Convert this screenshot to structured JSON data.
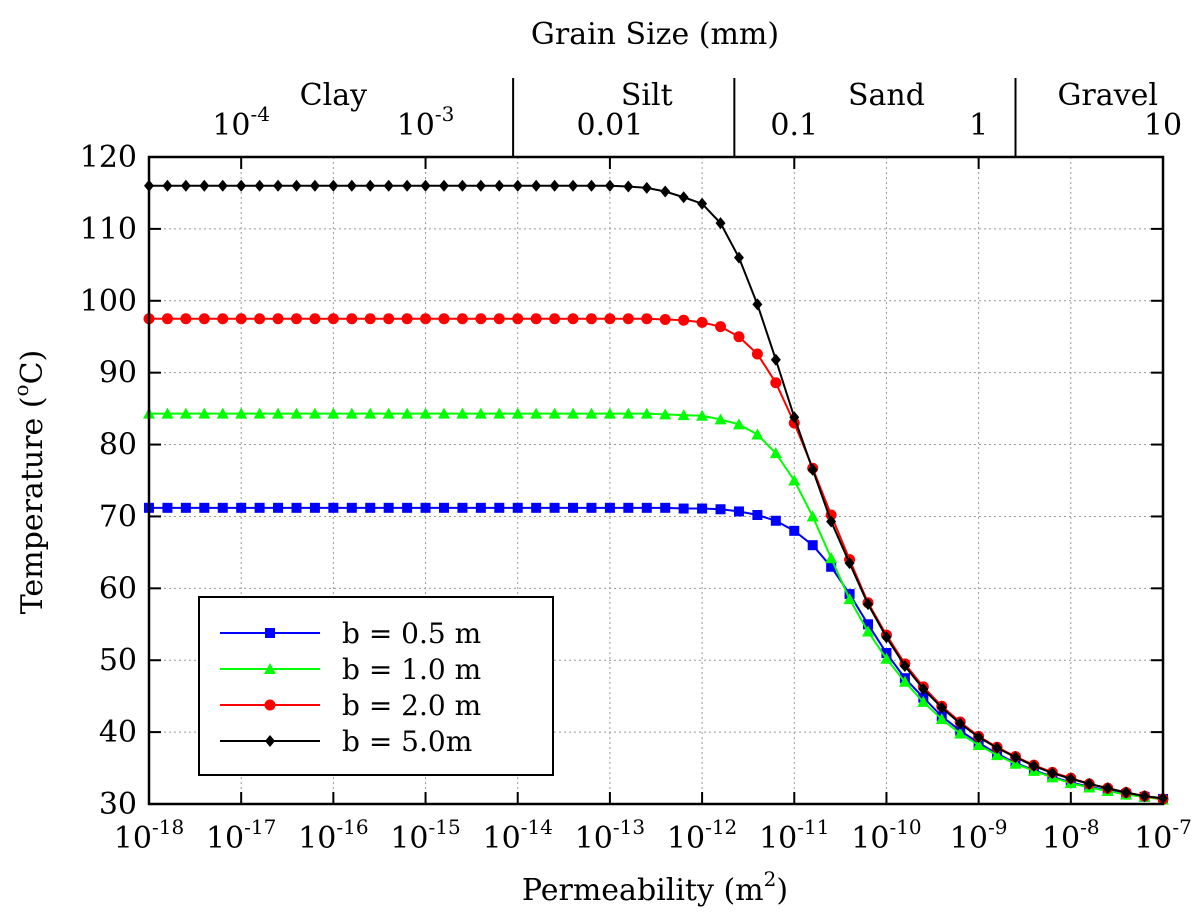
{
  "chart_data": {
    "type": "line",
    "top_title": "Grain Size (mm)",
    "xlabel": "Permeability (m^2)",
    "ylabel": "Temperature (°C)",
    "xscale": "log",
    "xlim": [
      1e-18,
      1e-07
    ],
    "ylim": [
      30,
      120
    ],
    "grid": true,
    "legend_position": "bottom-left",
    "x_tick_labels": [
      {
        "base": "10",
        "exp": "-18"
      },
      {
        "base": "10",
        "exp": "-17"
      },
      {
        "base": "10",
        "exp": "-16"
      },
      {
        "base": "10",
        "exp": "-15"
      },
      {
        "base": "10",
        "exp": "-14"
      },
      {
        "base": "10",
        "exp": "-13"
      },
      {
        "base": "10",
        "exp": "-12"
      },
      {
        "base": "10",
        "exp": "-11"
      },
      {
        "base": "10",
        "exp": "-10"
      },
      {
        "base": "10",
        "exp": "-9"
      },
      {
        "base": "10",
        "exp": "-8"
      },
      {
        "base": "10",
        "exp": "-7"
      }
    ],
    "y_ticks": [
      "30",
      "40",
      "50",
      "60",
      "70",
      "80",
      "90",
      "100",
      "110",
      "120"
    ],
    "grain_size_ticks": [
      {
        "base": "10",
        "exp": "-4",
        "permeability_log10": -17
      },
      {
        "base": "10",
        "exp": "-3",
        "permeability_log10": -15
      },
      {
        "base": "0.01",
        "exp": "",
        "permeability_log10": -13
      },
      {
        "base": "0.1",
        "exp": "",
        "permeability_log10": -11
      },
      {
        "base": "1",
        "exp": "",
        "permeability_log10": -9
      },
      {
        "base": "10",
        "exp": "",
        "permeability_log10": -7
      }
    ],
    "soil_classes": [
      {
        "name": "Clay",
        "center_log10": -16.0
      },
      {
        "name": "Silt",
        "center_log10": -12.6
      },
      {
        "name": "Sand",
        "center_log10": -10.0
      },
      {
        "name": "Gravel",
        "center_log10": -7.6
      }
    ],
    "soil_boundaries_log10": [
      -14.05,
      -11.65,
      -8.6
    ],
    "x_log10": [
      -18.0,
      -17.8,
      -17.6,
      -17.4,
      -17.2,
      -17.0,
      -16.8,
      -16.6,
      -16.4,
      -16.2,
      -16.0,
      -15.8,
      -15.6,
      -15.4,
      -15.2,
      -15.0,
      -14.8,
      -14.6,
      -14.4,
      -14.2,
      -14.0,
      -13.8,
      -13.6,
      -13.4,
      -13.2,
      -13.0,
      -12.8,
      -12.6,
      -12.4,
      -12.2,
      -12.0,
      -11.8,
      -11.6,
      -11.4,
      -11.2,
      -11.0,
      -10.8,
      -10.6,
      -10.4,
      -10.2,
      -10.0,
      -9.8,
      -9.6,
      -9.4,
      -9.2,
      -9.0,
      -8.8,
      -8.6,
      -8.4,
      -8.2,
      -8.0,
      -7.8,
      -7.6,
      -7.4,
      -7.2,
      -7.0
    ],
    "series": [
      {
        "name": "b = 0.5 m",
        "color": "#0000ff",
        "marker": "square",
        "values": [
          71.2,
          71.2,
          71.2,
          71.2,
          71.2,
          71.2,
          71.2,
          71.2,
          71.2,
          71.2,
          71.2,
          71.2,
          71.2,
          71.2,
          71.2,
          71.2,
          71.2,
          71.2,
          71.2,
          71.2,
          71.2,
          71.2,
          71.2,
          71.2,
          71.2,
          71.2,
          71.2,
          71.2,
          71.2,
          71.1,
          71.1,
          71.0,
          70.7,
          70.2,
          69.4,
          68.0,
          66.0,
          63.0,
          59.2,
          55.0,
          51.0,
          47.5,
          44.8,
          42.2,
          40.2,
          38.5,
          37.0,
          35.7,
          34.7,
          33.8,
          33.0,
          32.4,
          31.9,
          31.4,
          31.0,
          30.7
        ]
      },
      {
        "name": "b = 1.0 m",
        "color": "#00ff00",
        "marker": "triangle",
        "values": [
          84.3,
          84.3,
          84.3,
          84.3,
          84.3,
          84.3,
          84.3,
          84.3,
          84.3,
          84.3,
          84.3,
          84.3,
          84.3,
          84.3,
          84.3,
          84.3,
          84.3,
          84.3,
          84.3,
          84.3,
          84.3,
          84.3,
          84.3,
          84.3,
          84.3,
          84.3,
          84.3,
          84.3,
          84.2,
          84.1,
          84.0,
          83.5,
          82.8,
          81.4,
          78.8,
          75.0,
          70.0,
          64.2,
          58.5,
          54.0,
          50.2,
          47.0,
          44.2,
          41.8,
          39.8,
          38.2,
          36.8,
          35.6,
          34.6,
          33.7,
          32.9,
          32.3,
          31.8,
          31.3,
          31.0,
          30.6
        ]
      },
      {
        "name": "b = 2.0 m",
        "color": "#ff0000",
        "marker": "circle",
        "values": [
          97.5,
          97.5,
          97.5,
          97.5,
          97.5,
          97.5,
          97.5,
          97.5,
          97.5,
          97.5,
          97.5,
          97.5,
          97.5,
          97.5,
          97.5,
          97.5,
          97.5,
          97.5,
          97.5,
          97.5,
          97.5,
          97.5,
          97.5,
          97.5,
          97.5,
          97.5,
          97.5,
          97.5,
          97.4,
          97.3,
          97.0,
          96.4,
          95.0,
          92.6,
          88.6,
          83.0,
          76.7,
          70.2,
          64.0,
          58.0,
          53.5,
          49.5,
          46.3,
          43.6,
          41.4,
          39.4,
          37.9,
          36.6,
          35.4,
          34.4,
          33.6,
          32.8,
          32.2,
          31.6,
          31.1,
          30.7
        ]
      },
      {
        "name": "b = 5.0m",
        "color": "#000000",
        "marker": "diamond",
        "values": [
          116.0,
          116.0,
          116.0,
          116.0,
          116.0,
          116.0,
          116.0,
          116.0,
          116.0,
          116.0,
          116.0,
          116.0,
          116.0,
          116.0,
          116.0,
          116.0,
          116.0,
          116.0,
          116.0,
          116.0,
          116.0,
          116.0,
          116.0,
          116.0,
          116.0,
          116.0,
          115.9,
          115.7,
          115.2,
          114.4,
          113.5,
          110.8,
          106.0,
          99.5,
          91.8,
          83.8,
          76.5,
          69.3,
          63.5,
          57.8,
          53.2,
          49.2,
          46.0,
          43.4,
          41.2,
          39.3,
          37.8,
          36.5,
          35.3,
          34.3,
          33.5,
          32.8,
          32.2,
          31.6,
          31.1,
          30.8
        ]
      }
    ]
  }
}
